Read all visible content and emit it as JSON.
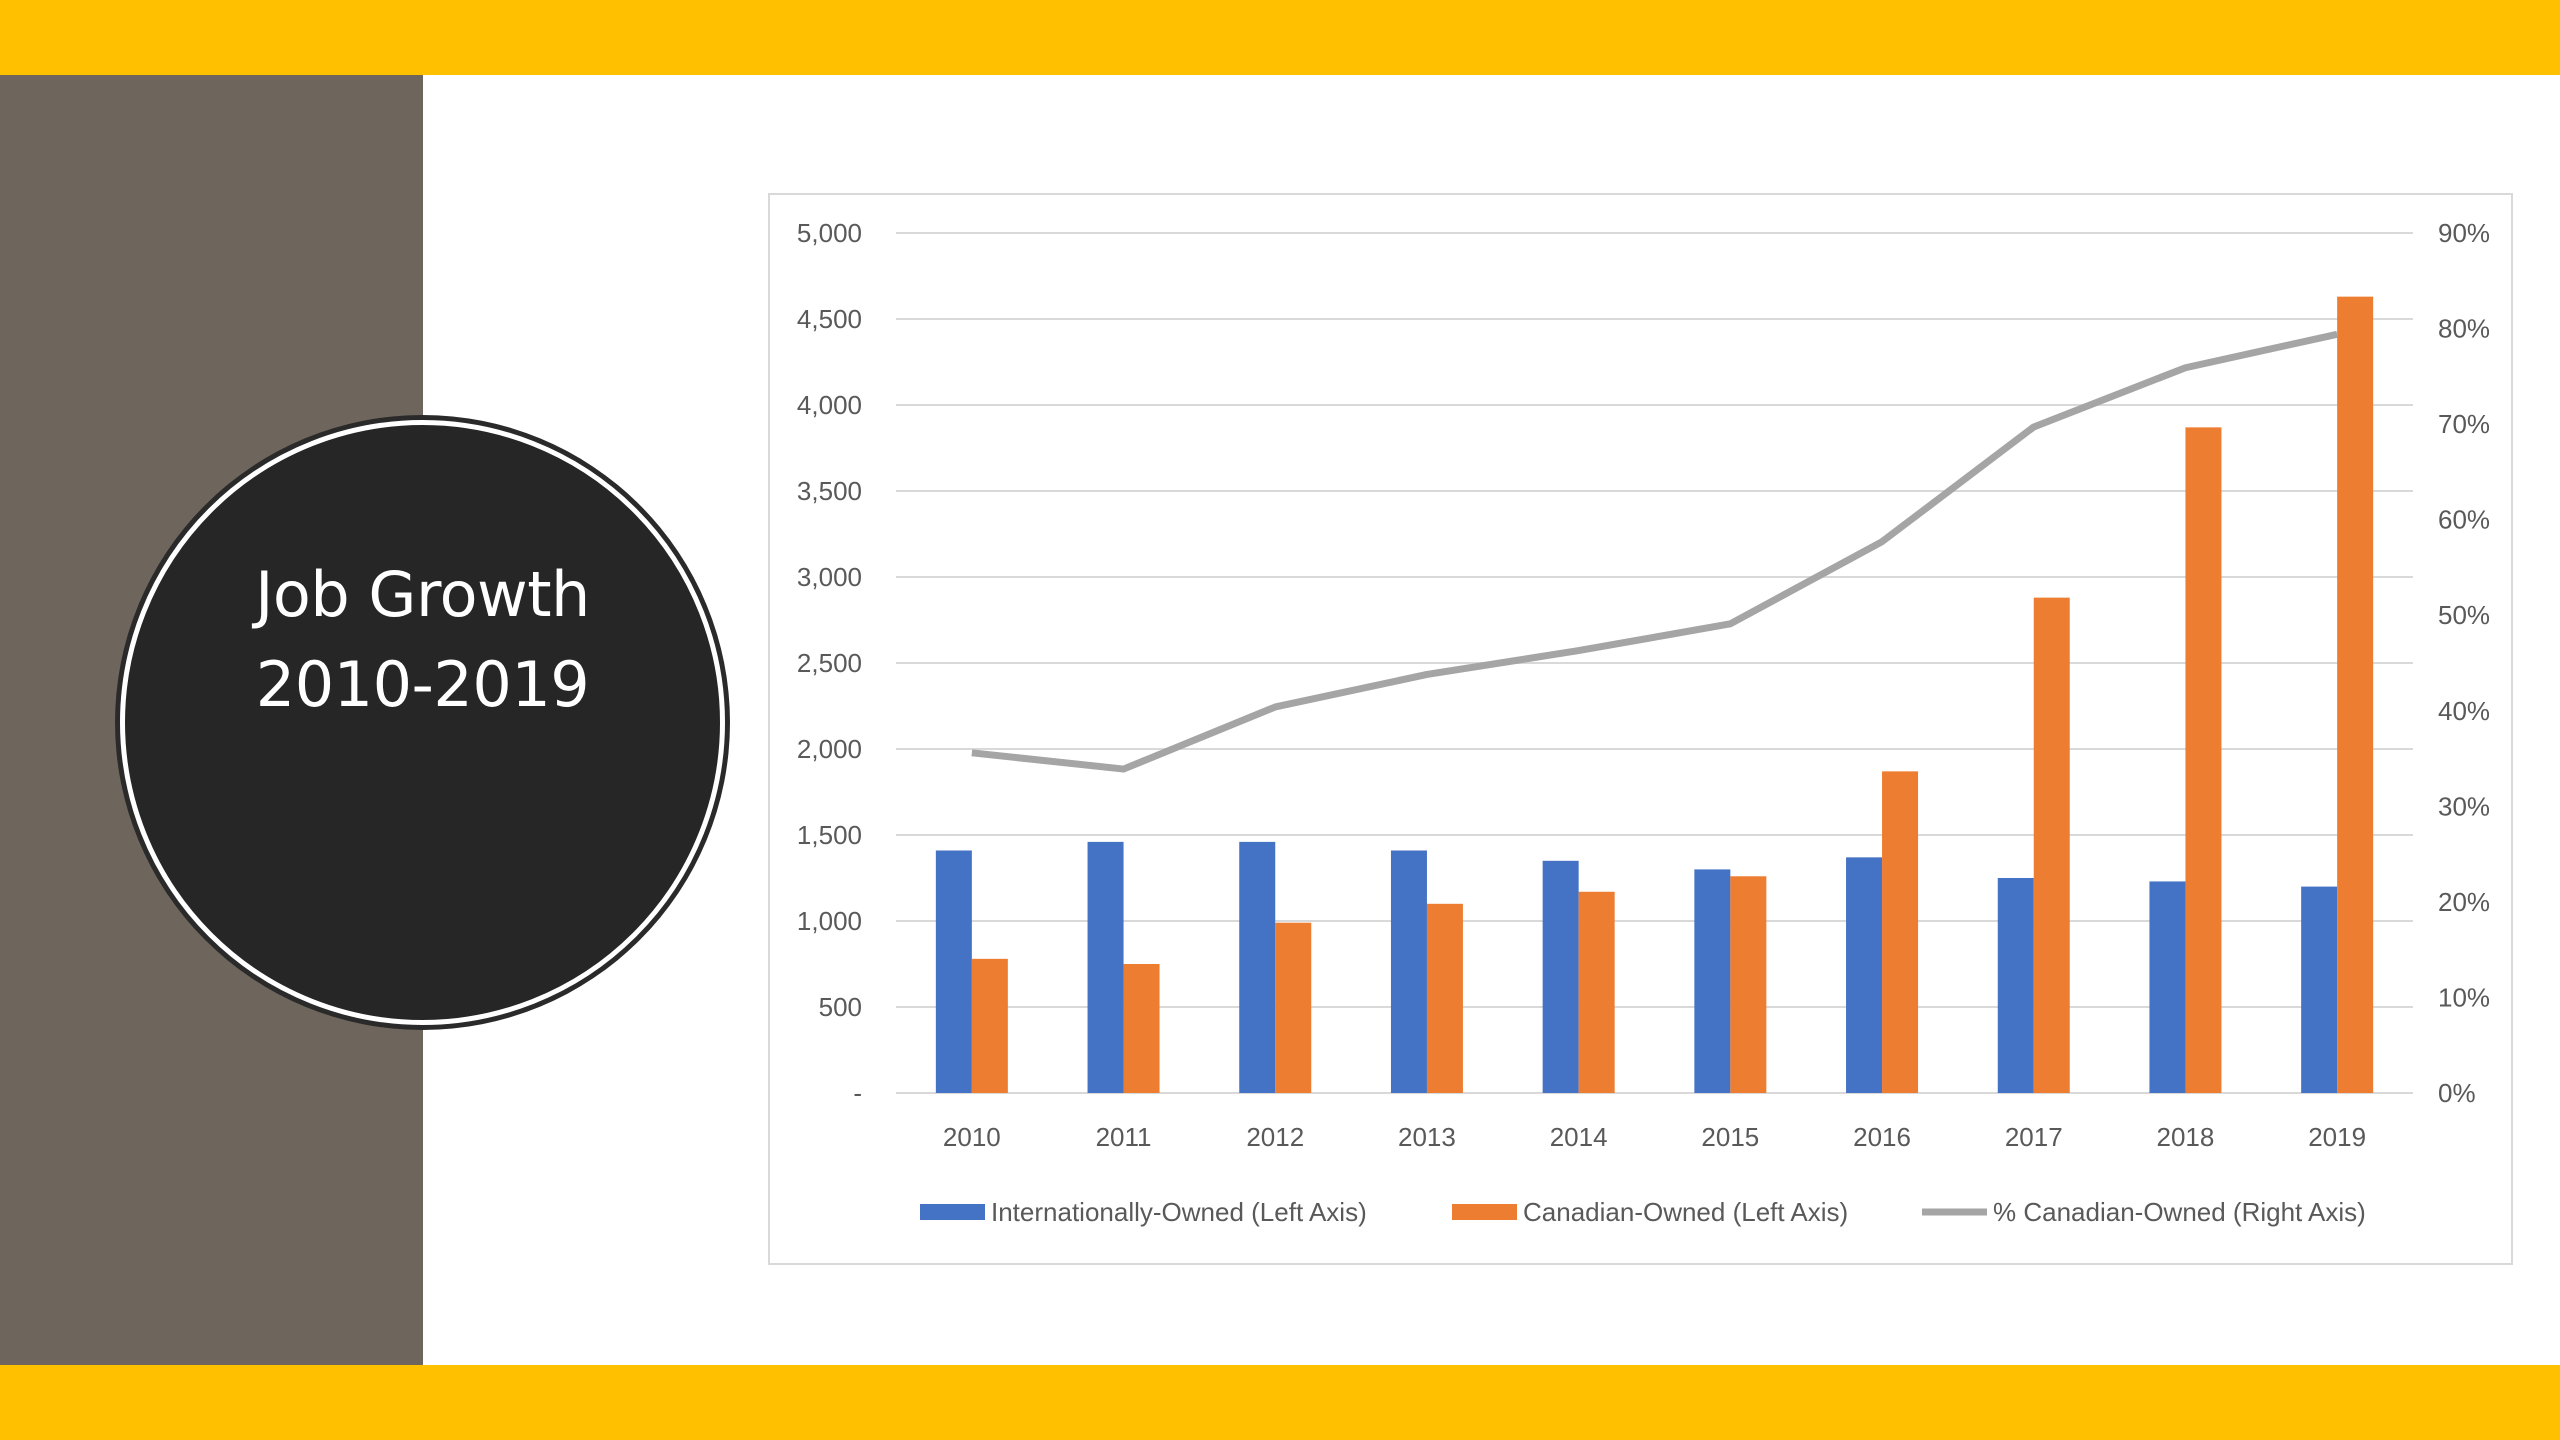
{
  "slide": {
    "title_lines": [
      "Job Growth",
      "2010-2019"
    ],
    "colors": {
      "accent_bar": "#FFC000",
      "side_panel": "#6E665C",
      "circle_fill": "#262626"
    }
  },
  "chart_data": {
    "type": "bar",
    "categories": [
      "2010",
      "2011",
      "2012",
      "2013",
      "2014",
      "2015",
      "2016",
      "2017",
      "2018",
      "2019"
    ],
    "series": [
      {
        "name": "Internationally-Owned (Left Axis)",
        "type": "bar",
        "axis": "left",
        "color": "#4472C4",
        "values": [
          1410,
          1460,
          1460,
          1410,
          1350,
          1300,
          1370,
          1250,
          1230,
          1200
        ]
      },
      {
        "name": "Canadian-Owned (Left Axis)",
        "type": "bar",
        "axis": "left",
        "color": "#ED7D31",
        "values": [
          780,
          750,
          990,
          1100,
          1170,
          1260,
          1870,
          2880,
          3870,
          4630
        ]
      },
      {
        "name": "% Canadian-Owned (Right Axis)",
        "type": "line",
        "axis": "right",
        "color": "#A5A5A5",
        "values": [
          35.6,
          33.9,
          40.4,
          43.8,
          46.3,
          49.1,
          57.7,
          69.7,
          75.9,
          79.4
        ]
      }
    ],
    "left_axis": {
      "min": 0,
      "max": 5000,
      "tick_values": [
        0,
        500,
        1000,
        1500,
        2000,
        2500,
        3000,
        3500,
        4000,
        4500,
        5000
      ],
      "tick_labels": [
        "-",
        "500",
        "1,000",
        "1,500",
        "2,000",
        "2,500",
        "3,000",
        "3,500",
        "4,000",
        "4,500",
        "5,000"
      ]
    },
    "right_axis": {
      "min": 0,
      "max": 90,
      "tick_values": [
        0,
        10,
        20,
        30,
        40,
        50,
        60,
        70,
        80,
        90
      ],
      "tick_labels": [
        "0%",
        "10%",
        "20%",
        "30%",
        "40%",
        "50%",
        "60%",
        "70%",
        "80%",
        "90%"
      ]
    },
    "grid": true,
    "legend_position": "bottom",
    "gridline_color": "#D9D9D9"
  }
}
